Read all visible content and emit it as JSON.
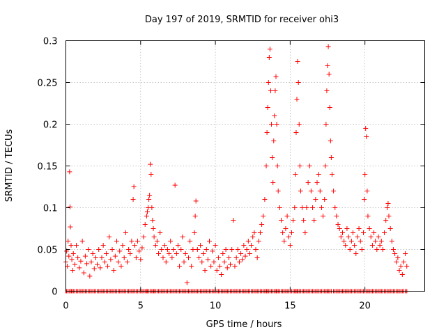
{
  "chart_data": {
    "type": "scatter",
    "title": "Day 197 of 2019, SRMTID for receiver ohi3",
    "xlabel": "GPS time / hours",
    "ylabel": "SRMTID / TECUs",
    "xlim": [
      0,
      24
    ],
    "ylim": [
      0,
      0.3
    ],
    "xticks": [
      0,
      5,
      10,
      15,
      20
    ],
    "yticks": [
      0,
      0.05,
      0.1,
      0.15,
      0.2,
      0.25,
      0.3
    ],
    "xtick_labels": [
      "0",
      "5",
      "10",
      "15",
      "20"
    ],
    "ytick_labels": [
      "0",
      "0.05",
      "0.1",
      "0.15",
      "0.2",
      "0.25",
      "0.3"
    ],
    "grid": true,
    "marker": "+",
    "color": "#ff0000",
    "series": [
      {
        "name": "SRMTID",
        "points": [
          [
            0.0,
            0.035
          ],
          [
            0.05,
            0.048
          ],
          [
            0.1,
            0.03
          ],
          [
            0.15,
            0.06
          ],
          [
            0.2,
            0.042
          ],
          [
            0.25,
            0.143
          ],
          [
            0.28,
            0.101
          ],
          [
            0.3,
            0.077
          ],
          [
            0.35,
            0.055
          ],
          [
            0.4,
            0.038
          ],
          [
            0.45,
            0.025
          ],
          [
            0.5,
            0.045
          ],
          [
            0.6,
            0.032
          ],
          [
            0.7,
            0.055
          ],
          [
            0.8,
            0.04
          ],
          [
            0.9,
            0.028
          ],
          [
            1.0,
            0.036
          ],
          [
            1.1,
            0.06
          ],
          [
            1.2,
            0.022
          ],
          [
            1.3,
            0.042
          ],
          [
            1.4,
            0.033
          ],
          [
            1.5,
            0.05
          ],
          [
            1.6,
            0.018
          ],
          [
            1.7,
            0.035
          ],
          [
            1.8,
            0.045
          ],
          [
            1.9,
            0.027
          ],
          [
            2.0,
            0.04
          ],
          [
            2.1,
            0.032
          ],
          [
            2.2,
            0.05
          ],
          [
            2.3,
            0.028
          ],
          [
            2.4,
            0.04
          ],
          [
            2.5,
            0.055
          ],
          [
            2.6,
            0.035
          ],
          [
            2.7,
            0.045
          ],
          [
            2.8,
            0.03
          ],
          [
            2.9,
            0.065
          ],
          [
            3.0,
            0.038
          ],
          [
            3.1,
            0.05
          ],
          [
            3.2,
            0.025
          ],
          [
            3.3,
            0.042
          ],
          [
            3.4,
            0.06
          ],
          [
            3.5,
            0.035
          ],
          [
            3.6,
            0.048
          ],
          [
            3.7,
            0.03
          ],
          [
            3.8,
            0.055
          ],
          [
            3.9,
            0.04
          ],
          [
            4.0,
            0.07
          ],
          [
            4.1,
            0.035
          ],
          [
            4.2,
            0.05
          ],
          [
            4.3,
            0.045
          ],
          [
            4.4,
            0.06
          ],
          [
            4.5,
            0.11
          ],
          [
            4.55,
            0.125
          ],
          [
            4.6,
            0.055
          ],
          [
            4.7,
            0.04
          ],
          [
            4.8,
            0.06
          ],
          [
            4.9,
            0.048
          ],
          [
            5.0,
            0.038
          ],
          [
            5.1,
            0.052
          ],
          [
            5.2,
            0.065
          ],
          [
            5.3,
            0.08
          ],
          [
            5.4,
            0.09
          ],
          [
            5.45,
            0.095
          ],
          [
            5.5,
            0.1
          ],
          [
            5.55,
            0.11
          ],
          [
            5.6,
            0.115
          ],
          [
            5.65,
            0.152
          ],
          [
            5.7,
            0.14
          ],
          [
            5.75,
            0.1
          ],
          [
            5.8,
            0.085
          ],
          [
            5.85,
            0.075
          ],
          [
            5.9,
            0.065
          ],
          [
            6.0,
            0.055
          ],
          [
            6.1,
            0.06
          ],
          [
            6.2,
            0.045
          ],
          [
            6.3,
            0.07
          ],
          [
            6.4,
            0.05
          ],
          [
            6.5,
            0.04
          ],
          [
            6.6,
            0.055
          ],
          [
            6.7,
            0.035
          ],
          [
            6.8,
            0.05
          ],
          [
            6.9,
            0.045
          ],
          [
            7.0,
            0.06
          ],
          [
            7.1,
            0.04
          ],
          [
            7.2,
            0.05
          ],
          [
            7.3,
            0.127
          ],
          [
            7.4,
            0.045
          ],
          [
            7.5,
            0.055
          ],
          [
            7.6,
            0.03
          ],
          [
            7.7,
            0.05
          ],
          [
            7.8,
            0.065
          ],
          [
            7.9,
            0.035
          ],
          [
            8.0,
            0.045
          ],
          [
            8.1,
            0.01
          ],
          [
            8.2,
            0.04
          ],
          [
            8.3,
            0.06
          ],
          [
            8.4,
            0.03
          ],
          [
            8.5,
            0.05
          ],
          [
            8.6,
            0.07
          ],
          [
            8.65,
            0.09
          ],
          [
            8.7,
            0.108
          ],
          [
            8.8,
            0.05
          ],
          [
            8.9,
            0.04
          ],
          [
            9.0,
            0.055
          ],
          [
            9.1,
            0.035
          ],
          [
            9.2,
            0.045
          ],
          [
            9.3,
            0.025
          ],
          [
            9.4,
            0.05
          ],
          [
            9.5,
            0.038
          ],
          [
            9.6,
            0.06
          ],
          [
            9.7,
            0.03
          ],
          [
            9.8,
            0.048
          ],
          [
            9.9,
            0.035
          ],
          [
            10.0,
            0.055
          ],
          [
            10.1,
            0.025
          ],
          [
            10.2,
            0.04
          ],
          [
            10.3,
            0.03
          ],
          [
            10.4,
            0.02
          ],
          [
            10.5,
            0.045
          ],
          [
            10.6,
            0.035
          ],
          [
            10.7,
            0.05
          ],
          [
            10.8,
            0.028
          ],
          [
            10.9,
            0.04
          ],
          [
            11.0,
            0.032
          ],
          [
            11.1,
            0.05
          ],
          [
            11.2,
            0.085
          ],
          [
            11.3,
            0.03
          ],
          [
            11.4,
            0.04
          ],
          [
            11.5,
            0.05
          ],
          [
            11.6,
            0.035
          ],
          [
            11.7,
            0.045
          ],
          [
            11.8,
            0.038
          ],
          [
            11.9,
            0.055
          ],
          [
            12.0,
            0.042
          ],
          [
            12.1,
            0.05
          ],
          [
            12.2,
            0.06
          ],
          [
            12.3,
            0.045
          ],
          [
            12.4,
            0.055
          ],
          [
            12.5,
            0.065
          ],
          [
            12.6,
            0.07
          ],
          [
            12.7,
            0.05
          ],
          [
            12.8,
            0.04
          ],
          [
            12.9,
            0.06
          ],
          [
            13.0,
            0.07
          ],
          [
            13.1,
            0.08
          ],
          [
            13.2,
            0.09
          ],
          [
            13.3,
            0.11
          ],
          [
            13.4,
            0.15
          ],
          [
            13.45,
            0.19
          ],
          [
            13.5,
            0.22
          ],
          [
            13.55,
            0.25
          ],
          [
            13.6,
            0.28
          ],
          [
            13.65,
            0.29
          ],
          [
            13.7,
            0.24
          ],
          [
            13.75,
            0.2
          ],
          [
            13.8,
            0.16
          ],
          [
            13.85,
            0.13
          ],
          [
            13.9,
            0.18
          ],
          [
            13.95,
            0.21
          ],
          [
            14.0,
            0.24
          ],
          [
            14.05,
            0.257
          ],
          [
            14.1,
            0.2
          ],
          [
            14.15,
            0.15
          ],
          [
            14.2,
            0.12
          ],
          [
            14.3,
            0.1
          ],
          [
            14.4,
            0.085
          ],
          [
            14.5,
            0.07
          ],
          [
            14.6,
            0.06
          ],
          [
            14.7,
            0.075
          ],
          [
            14.8,
            0.09
          ],
          [
            14.9,
            0.065
          ],
          [
            15.0,
            0.055
          ],
          [
            15.1,
            0.07
          ],
          [
            15.2,
            0.085
          ],
          [
            15.3,
            0.1
          ],
          [
            15.35,
            0.14
          ],
          [
            15.4,
            0.19
          ],
          [
            15.45,
            0.23
          ],
          [
            15.5,
            0.275
          ],
          [
            15.55,
            0.25
          ],
          [
            15.6,
            0.2
          ],
          [
            15.65,
            0.15
          ],
          [
            15.7,
            0.12
          ],
          [
            15.8,
            0.1
          ],
          [
            15.9,
            0.085
          ],
          [
            16.0,
            0.07
          ],
          [
            16.1,
            0.1
          ],
          [
            16.2,
            0.13
          ],
          [
            16.3,
            0.15
          ],
          [
            16.4,
            0.12
          ],
          [
            16.5,
            0.1
          ],
          [
            16.6,
            0.085
          ],
          [
            16.7,
            0.11
          ],
          [
            16.8,
            0.13
          ],
          [
            16.9,
            0.14
          ],
          [
            17.0,
            0.12
          ],
          [
            17.1,
            0.1
          ],
          [
            17.2,
            0.09
          ],
          [
            17.3,
            0.11
          ],
          [
            17.35,
            0.15
          ],
          [
            17.4,
            0.2
          ],
          [
            17.45,
            0.24
          ],
          [
            17.5,
            0.27
          ],
          [
            17.55,
            0.293
          ],
          [
            17.6,
            0.26
          ],
          [
            17.65,
            0.22
          ],
          [
            17.7,
            0.18
          ],
          [
            17.75,
            0.16
          ],
          [
            17.8,
            0.14
          ],
          [
            17.9,
            0.12
          ],
          [
            18.0,
            0.1
          ],
          [
            18.1,
            0.09
          ],
          [
            18.2,
            0.08
          ],
          [
            18.3,
            0.075
          ],
          [
            18.4,
            0.065
          ],
          [
            18.5,
            0.07
          ],
          [
            18.6,
            0.06
          ],
          [
            18.7,
            0.055
          ],
          [
            18.8,
            0.075
          ],
          [
            18.9,
            0.065
          ],
          [
            19.0,
            0.05
          ],
          [
            19.1,
            0.06
          ],
          [
            19.2,
            0.07
          ],
          [
            19.3,
            0.055
          ],
          [
            19.4,
            0.045
          ],
          [
            19.5,
            0.065
          ],
          [
            19.6,
            0.075
          ],
          [
            19.7,
            0.06
          ],
          [
            19.8,
            0.05
          ],
          [
            19.9,
            0.07
          ],
          [
            19.95,
            0.11
          ],
          [
            20.0,
            0.14
          ],
          [
            20.05,
            0.195
          ],
          [
            20.1,
            0.185
          ],
          [
            20.15,
            0.12
          ],
          [
            20.2,
            0.09
          ],
          [
            20.3,
            0.075
          ],
          [
            20.4,
            0.065
          ],
          [
            20.5,
            0.055
          ],
          [
            20.6,
            0.07
          ],
          [
            20.7,
            0.06
          ],
          [
            20.8,
            0.05
          ],
          [
            20.9,
            0.065
          ],
          [
            21.0,
            0.055
          ],
          [
            21.1,
            0.06
          ],
          [
            21.2,
            0.05
          ],
          [
            21.3,
            0.07
          ],
          [
            21.4,
            0.085
          ],
          [
            21.5,
            0.1
          ],
          [
            21.55,
            0.105
          ],
          [
            21.6,
            0.09
          ],
          [
            21.7,
            0.075
          ],
          [
            21.8,
            0.06
          ],
          [
            21.9,
            0.05
          ],
          [
            22.0,
            0.045
          ],
          [
            22.1,
            0.035
          ],
          [
            22.2,
            0.04
          ],
          [
            22.3,
            0.025
          ],
          [
            22.4,
            0.03
          ],
          [
            22.5,
            0.02
          ],
          [
            22.6,
            0.035
          ],
          [
            22.7,
            0.045
          ],
          [
            22.8,
            0.03
          ]
        ]
      }
    ]
  }
}
